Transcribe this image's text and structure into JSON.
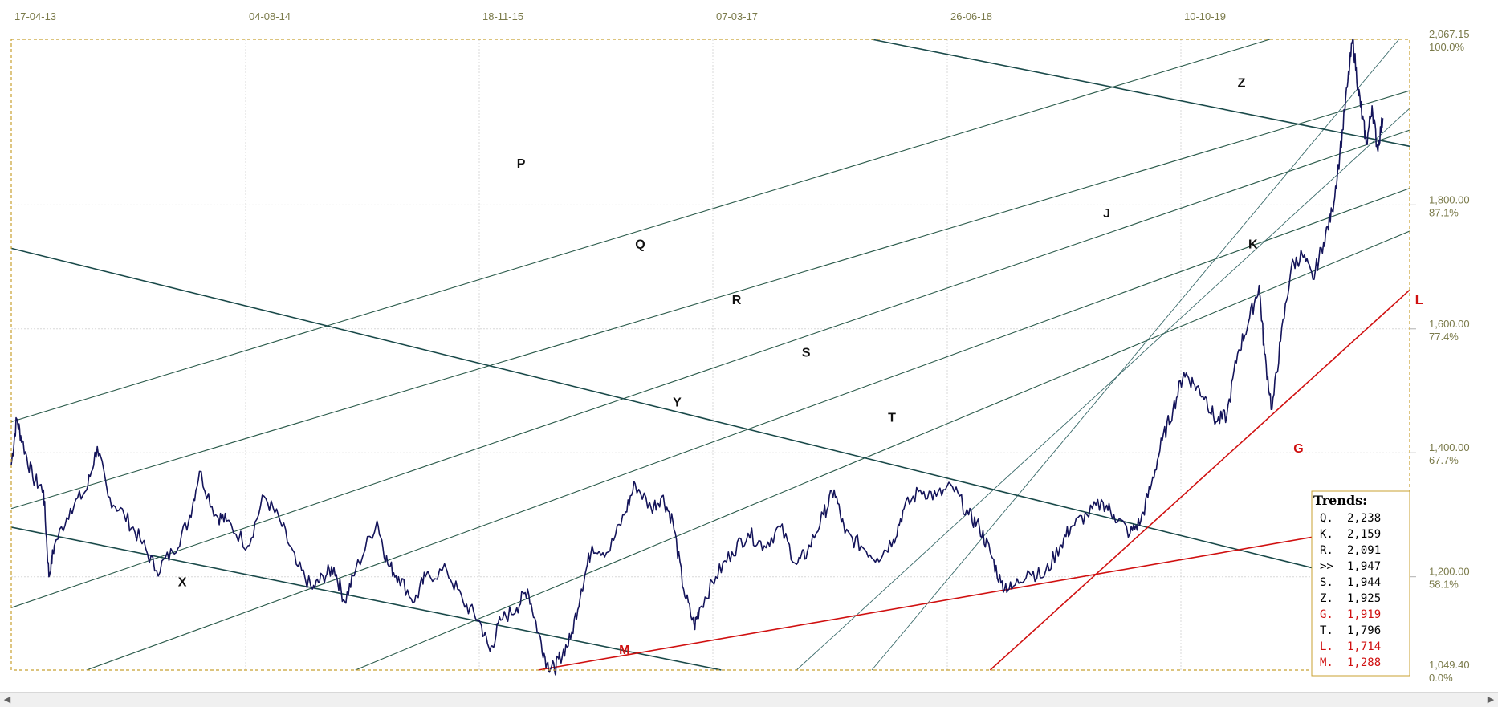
{
  "chart_data": {
    "type": "line",
    "x_ticks": [
      "17-04-13",
      "04-08-14",
      "18-11-15",
      "07-03-17",
      "26-06-18",
      "10-10-19"
    ],
    "y_ticks": [
      {
        "value": 2067.15,
        "label": "2,067.15",
        "pct": "100.0%"
      },
      {
        "value": 1800,
        "label": "1,800.00",
        "pct": "87.1%"
      },
      {
        "value": 1600,
        "label": "1,600.00",
        "pct": "77.4%"
      },
      {
        "value": 1400,
        "label": "1,400.00",
        "pct": "67.7%"
      },
      {
        "value": 1200,
        "label": "1,200.00",
        "pct": "58.1%"
      },
      {
        "value": 1049.4,
        "label": "1,049.40",
        "pct": "0.0%"
      }
    ],
    "ylim": [
      1049.4,
      2067.15
    ],
    "grid": true,
    "price_series": {
      "color": "#14145a",
      "points": [
        [
          2013.0,
          1380
        ],
        [
          2013.05,
          1455
        ],
        [
          2013.1,
          1420
        ],
        [
          2013.2,
          1360
        ],
        [
          2013.3,
          1340
        ],
        [
          2013.35,
          1200
        ],
        [
          2013.4,
          1250
        ],
        [
          2013.55,
          1310
        ],
        [
          2013.7,
          1340
        ],
        [
          2013.8,
          1410
        ],
        [
          2013.9,
          1330
        ],
        [
          2014.05,
          1300
        ],
        [
          2014.2,
          1260
        ],
        [
          2014.35,
          1210
        ],
        [
          2014.5,
          1240
        ],
        [
          2014.65,
          1290
        ],
        [
          2014.75,
          1370
        ],
        [
          2014.9,
          1300
        ],
        [
          2015.0,
          1290
        ],
        [
          2015.2,
          1250
        ],
        [
          2015.35,
          1330
        ],
        [
          2015.5,
          1290
        ],
        [
          2015.65,
          1220
        ],
        [
          2015.8,
          1180
        ],
        [
          2015.9,
          1200
        ],
        [
          2016.0,
          1215
        ],
        [
          2016.1,
          1160
        ],
        [
          2016.2,
          1210
        ],
        [
          2016.4,
          1290
        ],
        [
          2016.5,
          1220
        ],
        [
          2016.6,
          1200
        ],
        [
          2016.75,
          1160
        ],
        [
          2016.85,
          1200
        ],
        [
          2017.05,
          1210
        ],
        [
          2017.2,
          1160
        ],
        [
          2017.35,
          1130
        ],
        [
          2017.45,
          1080
        ],
        [
          2017.55,
          1130
        ],
        [
          2017.7,
          1150
        ],
        [
          2017.8,
          1180
        ],
        [
          2017.9,
          1110
        ],
        [
          2017.98,
          1060
        ],
        [
          2018.05,
          1050
        ],
        [
          2018.1,
          1070
        ],
        [
          2018.2,
          1100
        ],
        [
          2018.3,
          1180
        ],
        [
          2018.4,
          1250
        ],
        [
          2018.55,
          1240
        ],
        [
          2018.7,
          1300
        ],
        [
          2018.8,
          1350
        ],
        [
          2018.95,
          1310
        ],
        [
          2019.05,
          1330
        ],
        [
          2019.15,
          1290
        ],
        [
          2019.25,
          1180
        ],
        [
          2019.35,
          1120
        ],
        [
          2019.4,
          1150
        ],
        [
          2019.55,
          1200
        ],
        [
          2019.7,
          1240
        ],
        [
          2019.85,
          1270
        ],
        [
          2020.0,
          1250
        ],
        [
          2020.15,
          1280
        ],
        [
          2020.3,
          1220
        ],
        [
          2020.4,
          1240
        ],
        [
          2020.55,
          1300
        ],
        [
          2020.65,
          1340
        ],
        [
          2020.75,
          1270
        ],
        [
          2020.9,
          1250
        ],
        [
          2021.05,
          1230
        ],
        [
          2021.2,
          1260
        ],
        [
          2021.3,
          1310
        ],
        [
          2021.45,
          1340
        ],
        [
          2021.6,
          1330
        ],
        [
          2021.75,
          1345
        ],
        [
          2021.9,
          1300
        ],
        [
          2022.0,
          1280
        ],
        [
          2022.1,
          1240
        ],
        [
          2022.2,
          1190
        ],
        [
          2022.3,
          1180
        ],
        [
          2022.45,
          1210
        ],
        [
          2022.6,
          1200
        ],
        [
          2022.75,
          1250
        ],
        [
          2022.85,
          1280
        ],
        [
          2023.0,
          1300
        ],
        [
          2023.15,
          1320
        ],
        [
          2023.25,
          1300
        ],
        [
          2023.4,
          1270
        ],
        [
          2023.5,
          1290
        ],
        [
          2023.6,
          1350
        ],
        [
          2023.7,
          1420
        ],
        [
          2023.8,
          1470
        ],
        [
          2023.9,
          1530
        ],
        [
          2024.0,
          1510
        ],
        [
          2024.1,
          1490
        ],
        [
          2024.2,
          1450
        ],
        [
          2024.3,
          1460
        ],
        [
          2024.4,
          1560
        ],
        [
          2024.5,
          1610
        ],
        [
          2024.6,
          1670
        ],
        [
          2024.65,
          1560
        ],
        [
          2024.72,
          1470
        ],
        [
          2024.8,
          1580
        ],
        [
          2024.9,
          1700
        ],
        [
          2025.0,
          1720
        ],
        [
          2025.1,
          1680
        ],
        [
          2025.2,
          1740
        ],
        [
          2025.28,
          1790
        ],
        [
          2025.35,
          1880
        ],
        [
          2025.42,
          1990
        ],
        [
          2025.47,
          2067
        ],
        [
          2025.52,
          1990
        ],
        [
          2025.56,
          1940
        ],
        [
          2025.6,
          1900
        ],
        [
          2025.65,
          1960
        ],
        [
          2025.7,
          1890
        ],
        [
          2025.75,
          1940
        ]
      ]
    },
    "trend_lines": [
      {
        "name": "P",
        "color": "#2a5a4a",
        "width": 1.1,
        "x1": 2013.0,
        "y1": 1450,
        "x2": 2024.7,
        "y2": 2067.15,
        "label_x": 2017.7,
        "label_y": 1860
      },
      {
        "name": "Q",
        "color": "#2a5a4a",
        "width": 1.1,
        "x1": 2013.0,
        "y1": 1310,
        "x2": 2027.6,
        "y2": 2067.15,
        "label_x": 2018.8,
        "label_y": 1730
      },
      {
        "name": "R",
        "color": "#2a5a4a",
        "width": 1.1,
        "x1": 2013.0,
        "y1": 1150,
        "x2": 2027.0,
        "y2": 1980,
        "label_x": 2019.7,
        "label_y": 1640
      },
      {
        "name": "S",
        "color": "#2a5a4a",
        "width": 1.1,
        "x1": 2013.7,
        "y1": 1049.4,
        "x2": 2027.0,
        "y2": 1890,
        "label_x": 2020.35,
        "label_y": 1555
      },
      {
        "name": "T",
        "color": "#2a5a4a",
        "width": 1.1,
        "x1": 2016.2,
        "y1": 1049.4,
        "x2": 2027.0,
        "y2": 1830,
        "label_x": 2021.15,
        "label_y": 1450
      },
      {
        "name": "J",
        "color": "#3a6a6a",
        "width": 0.9,
        "x1": 2020.3,
        "y1": 1049.4,
        "x2": 2026.7,
        "y2": 2067.15,
        "label_x": 2023.15,
        "label_y": 1780
      },
      {
        "name": "K",
        "color": "#3a6a6a",
        "width": 0.9,
        "x1": 2021.0,
        "y1": 1049.4,
        "x2": 2025.9,
        "y2": 2067.15,
        "label_x": 2024.5,
        "label_y": 1730
      },
      {
        "name": "X",
        "color": "#1a4a4a",
        "width": 1.6,
        "x1": 2013.0,
        "y1": 1280,
        "x2": 2019.6,
        "y2": 1049.4,
        "label_x": 2014.55,
        "label_y": 1185
      },
      {
        "name": "Y",
        "color": "#1a4a4a",
        "width": 1.6,
        "x1": 2013.0,
        "y1": 1730,
        "x2": 2025.9,
        "y2": 1180,
        "label_x": 2019.15,
        "label_y": 1475
      },
      {
        "name": "Z",
        "color": "#1a4a4a",
        "width": 1.6,
        "x1": 2021.0,
        "y1": 2067.15,
        "x2": 2027.0,
        "y2": 1860,
        "label_x": 2024.4,
        "label_y": 1990
      },
      {
        "name": "M",
        "color": "#d01010",
        "width": 1.6,
        "x1": 2017.9,
        "y1": 1049.4,
        "x2": 2025.8,
        "y2": 1285,
        "label_x": 2018.65,
        "label_y": 1075
      },
      {
        "name": "G",
        "color": "#d01010",
        "width": 1.0,
        "x1": 2025.8,
        "y1": 1049.4,
        "x2": 2028.6,
        "y2": 2067.15,
        "label_x": 2024.92,
        "label_y": 1400
      },
      {
        "name": "L",
        "color": "#d01010",
        "width": 1.6,
        "x1": 2022.1,
        "y1": 1049.4,
        "x2": 2027.0,
        "y2": 1820,
        "label_x": 2026.05,
        "label_y": 1640
      }
    ],
    "legend": {
      "title": "Trends:",
      "entries": [
        {
          "label": "Q.",
          "value": "2,238",
          "color": "#000000"
        },
        {
          "label": "K.",
          "value": "2,159",
          "color": "#000000"
        },
        {
          "label": "R.",
          "value": "2,091",
          "color": "#000000"
        },
        {
          "label": ">>",
          "value": "1,947",
          "color": "#000000"
        },
        {
          "label": "S.",
          "value": "1,944",
          "color": "#000000"
        },
        {
          "label": "Z.",
          "value": "1,925",
          "color": "#000000"
        },
        {
          "label": "G.",
          "value": "1,919",
          "color": "#d01010"
        },
        {
          "label": "T.",
          "value": "1,796",
          "color": "#000000"
        },
        {
          "label": "L.",
          "value": "1,714",
          "color": "#d01010"
        },
        {
          "label": "M.",
          "value": "1,288",
          "color": "#d01010"
        }
      ]
    }
  },
  "scrollbar": {
    "left_arrow": "◀",
    "right_arrow": "▶"
  }
}
